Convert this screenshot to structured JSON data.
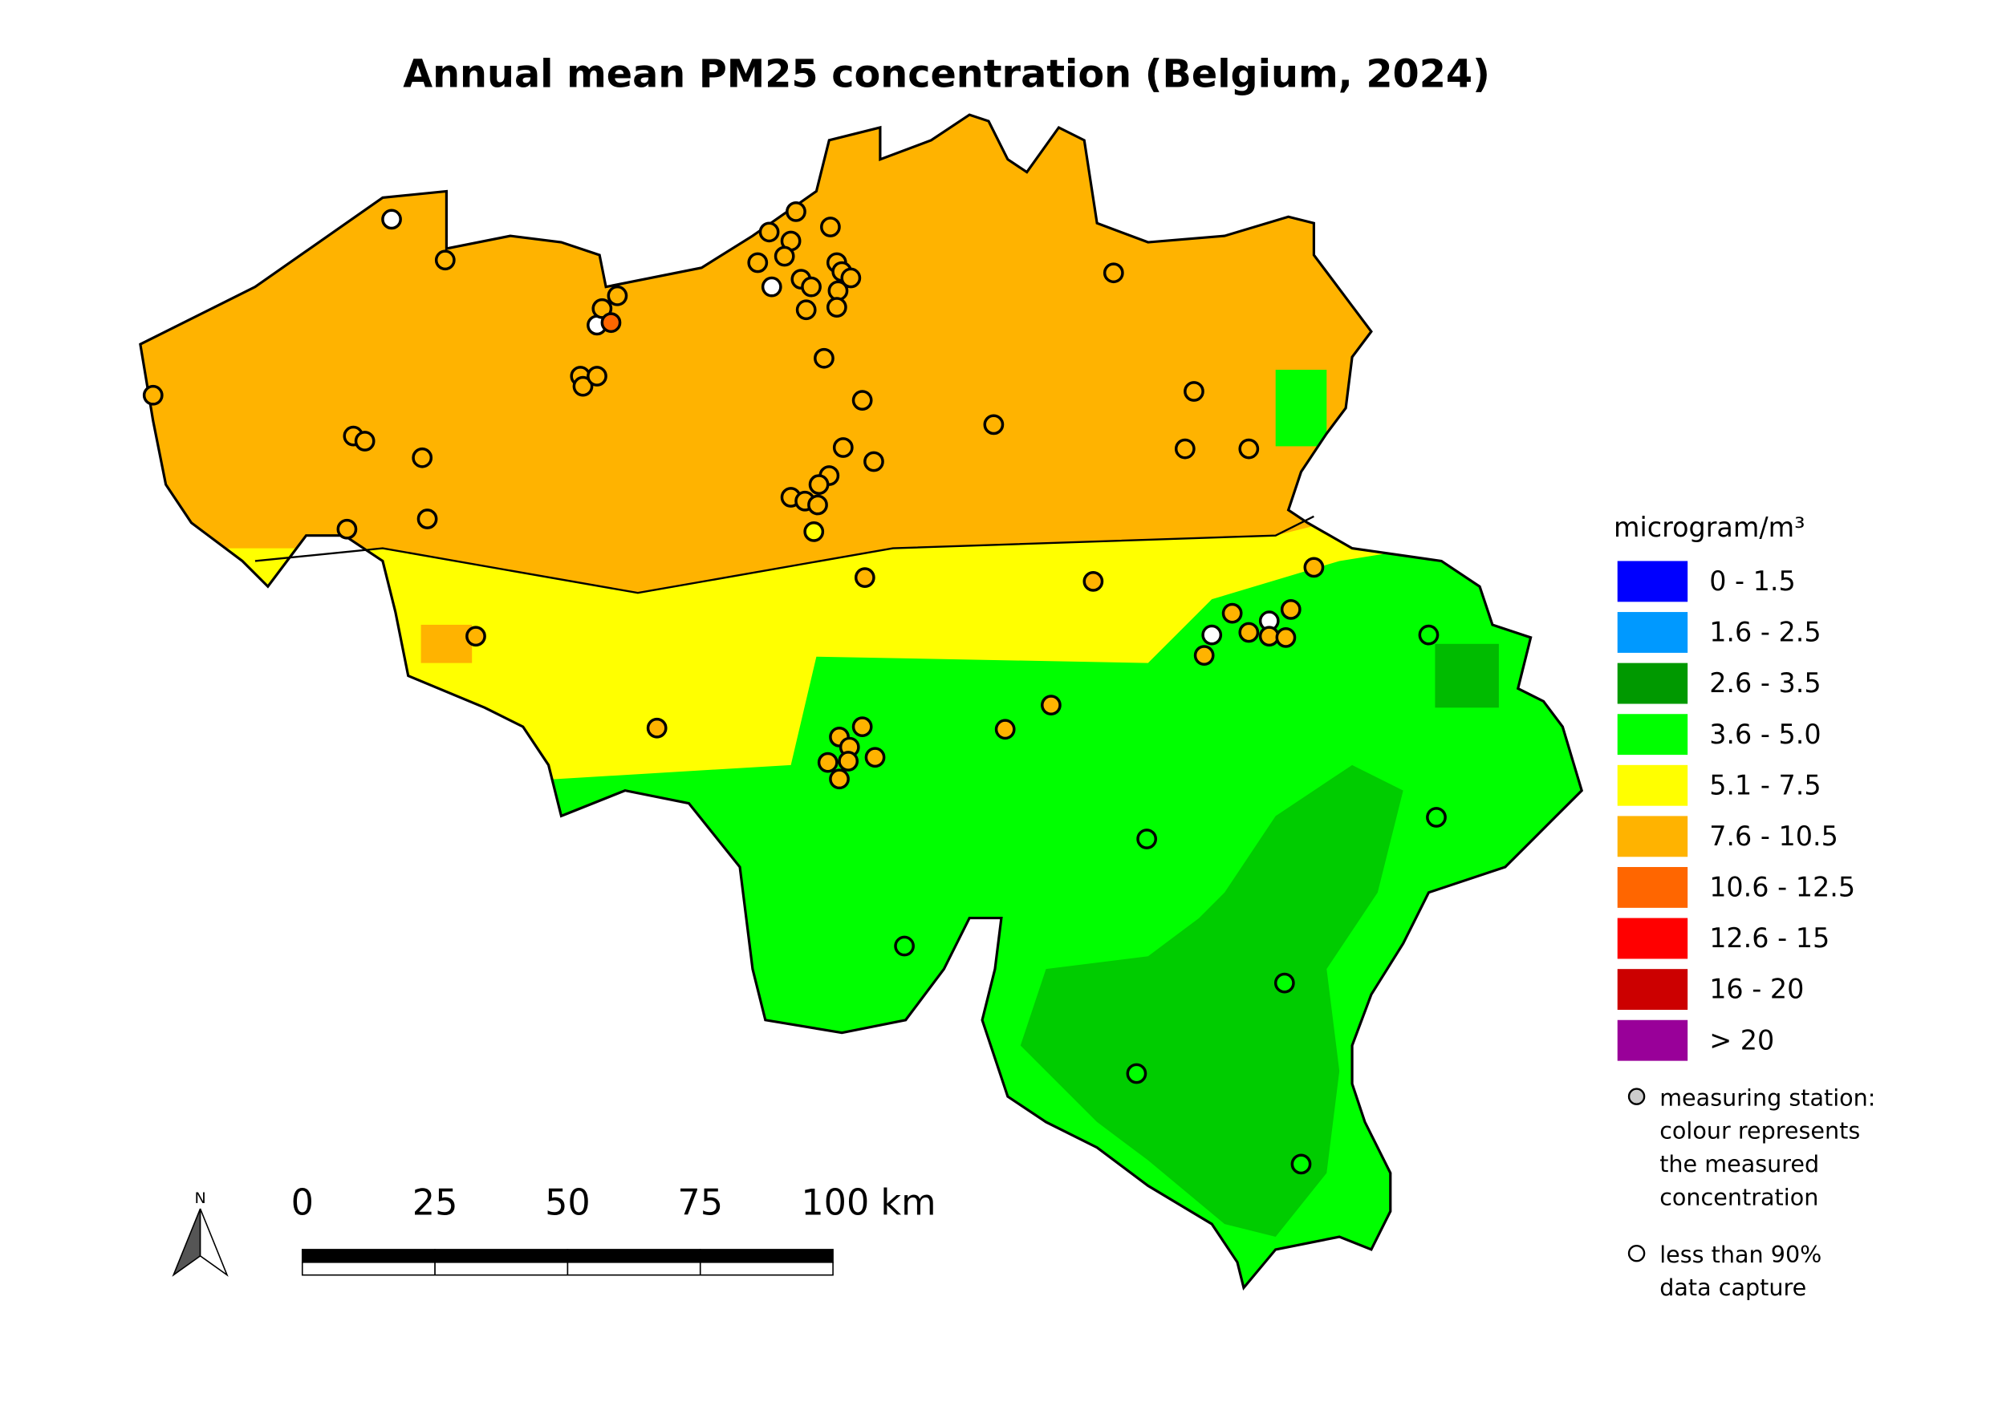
{
  "title": "Annual mean PM25 concentration (Belgium, 2024)",
  "legend": {
    "title": "microgram/m³",
    "items": [
      {
        "label": "0 - 1.5",
        "color": "#0000ff"
      },
      {
        "label": "1.6 - 2.5",
        "color": "#0099ff"
      },
      {
        "label": "2.6 - 3.5",
        "color": "#009900"
      },
      {
        "label": "3.6 - 5.0",
        "color": "#00ff00"
      },
      {
        "label": "5.1 - 7.5",
        "color": "#ffff00"
      },
      {
        "label": "7.6 - 10.5",
        "color": "#ffb300"
      },
      {
        "label": "10.6 - 12.5",
        "color": "#ff6600"
      },
      {
        "label": "12.6 - 15",
        "color": "#ff0000"
      },
      {
        "label": "16 - 20",
        "color": "#cc0000"
      },
      {
        "label": "> 20",
        "color": "#990099"
      }
    ],
    "station_note": [
      "measuring station:",
      "colour represents",
      "the measured",
      "concentration"
    ],
    "capture_note": [
      "less than 90%",
      "data capture"
    ]
  },
  "north": "N",
  "scale_labels": [
    "0",
    "25",
    "50",
    "75",
    "100 km"
  ]
}
